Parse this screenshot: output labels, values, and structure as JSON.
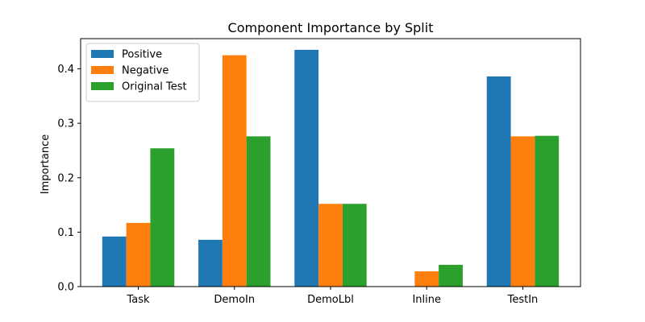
{
  "chart_data": {
    "type": "bar",
    "title": "Component Importance by Split",
    "xlabel": "",
    "ylabel": "Importance",
    "categories": [
      "Task",
      "DemoIn",
      "DemoLbl",
      "Inline",
      "TestIn"
    ],
    "series": [
      {
        "name": "Positive",
        "color": "#1f77b4",
        "values": [
          0.092,
          0.086,
          0.435,
          0.0,
          0.386
        ]
      },
      {
        "name": "Negative",
        "color": "#ff7f0e",
        "values": [
          0.117,
          0.425,
          0.152,
          0.028,
          0.276
        ]
      },
      {
        "name": "Original Test",
        "color": "#2ca02c",
        "values": [
          0.254,
          0.276,
          0.152,
          0.04,
          0.277
        ]
      }
    ],
    "ylim": [
      0,
      0.4555
    ],
    "yticks": [
      0.0,
      0.1,
      0.2,
      0.3,
      0.4
    ],
    "ytick_labels": [
      "0.0",
      "0.1",
      "0.2",
      "0.3",
      "0.4"
    ],
    "legend_position": "top-left",
    "grid": false
  }
}
